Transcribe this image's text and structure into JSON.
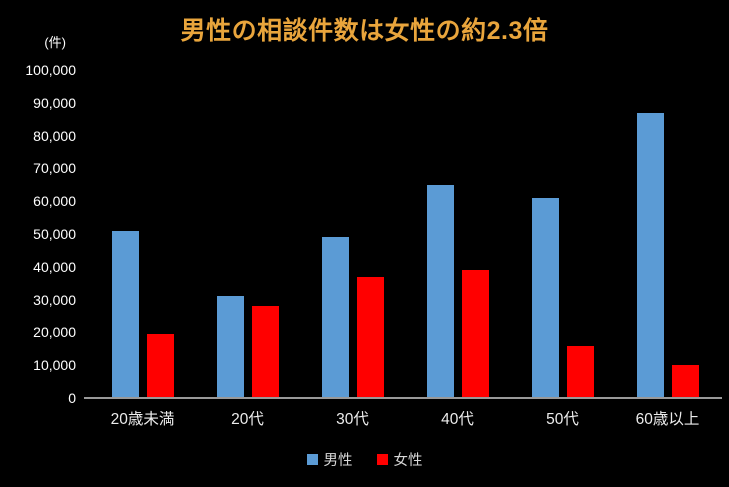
{
  "chart_data": {
    "type": "bar",
    "title": "男性の相談件数は女性の約2.3倍",
    "unit_label": "(件)",
    "categories": [
      "20歳未満",
      "20代",
      "30代",
      "40代",
      "50代",
      "60歳以上"
    ],
    "series": [
      {
        "name": "男性",
        "key": "male",
        "color": "#5B9BD5",
        "values": [
          51000,
          31000,
          49000,
          65000,
          61000,
          87000
        ]
      },
      {
        "name": "女性",
        "key": "female",
        "color": "#FF0000",
        "values": [
          19500,
          28000,
          37000,
          39000,
          16000,
          10000
        ]
      }
    ],
    "ylim": [
      0,
      100000
    ],
    "y_tick_step": 10000,
    "y_tick_labels": [
      "0",
      "10,000",
      "20,000",
      "30,000",
      "40,000",
      "50,000",
      "60,000",
      "70,000",
      "80,000",
      "90,000",
      "100,000"
    ],
    "grid": false,
    "legend_position": "bottom",
    "background_color": "#000000",
    "title_color": "#E9A53C",
    "axis_line_color": "#999999",
    "y_label_color": "#FFFFFF",
    "x_label_color": "#ECECEC",
    "legend_text_color": "#D9D9D9"
  }
}
